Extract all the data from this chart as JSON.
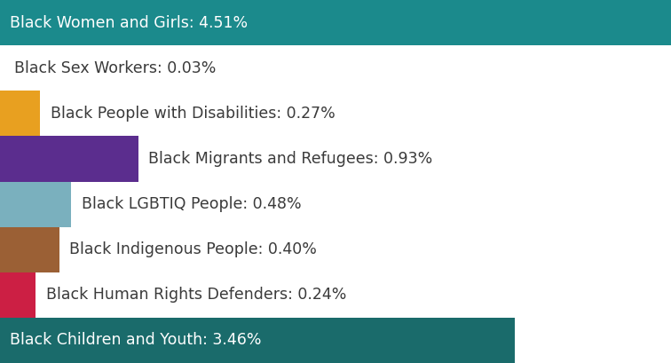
{
  "categories": [
    "Black Women and Girls: 4.51%",
    "Black Sex Workers: 0.03%",
    "Black People with Disabilities: 0.27%",
    "Black Migrants and Refugees: 0.93%",
    "Black LGBTIQ People: 0.48%",
    "Black Indigenous People: 0.40%",
    "Black Human Rights Defenders: 0.24%",
    "Black Children and Youth: 3.46%"
  ],
  "values": [
    4.51,
    0.03,
    0.27,
    0.93,
    0.48,
    0.4,
    0.24,
    3.46
  ],
  "colors": [
    "#1b8a8c",
    "#ffffff",
    "#e8a020",
    "#5b2d8e",
    "#7ab0be",
    "#9b6035",
    "#cc1f44",
    "#1a6b6b"
  ],
  "text_colors": [
    "#ffffff",
    "#333333",
    "#333333",
    "#333333",
    "#333333",
    "#333333",
    "#333333",
    "#ffffff"
  ],
  "max_value": 4.51,
  "background_color": "#ffffff",
  "label_fontsize": 12.5,
  "bar_height": 1.0
}
